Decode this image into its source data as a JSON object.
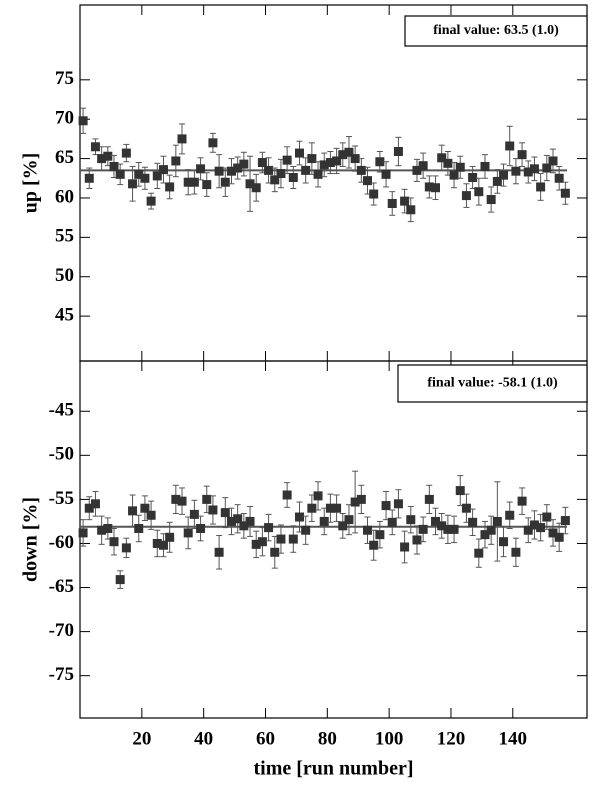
{
  "chart_data": [
    {
      "type": "scatter",
      "ylabel": "up [%]",
      "annotation": "final value: 63.5 (1.0)",
      "fit": 63.5,
      "color": "#333333",
      "ylim": [
        39.3,
        84.5
      ],
      "yticks": [
        45,
        50,
        55,
        60,
        65,
        70,
        75
      ],
      "x": [
        1,
        3,
        5,
        7,
        9,
        11,
        13,
        15,
        17,
        19,
        21,
        23,
        25,
        27,
        29,
        31,
        33,
        35,
        37,
        39,
        41,
        43,
        45,
        47,
        49,
        51,
        53,
        55,
        57,
        59,
        61,
        63,
        65,
        67,
        69,
        71,
        73,
        75,
        77,
        79,
        81,
        83,
        85,
        87,
        89,
        91,
        93,
        95,
        97,
        99,
        101,
        103,
        105,
        107,
        109,
        111,
        113,
        115,
        117,
        119,
        121,
        123,
        125,
        127,
        129,
        131,
        133,
        135,
        137,
        139,
        141,
        143,
        145,
        147,
        149,
        151,
        153,
        155,
        157
      ],
      "values": [
        69.8,
        62.5,
        66.5,
        65,
        65.3,
        64,
        63,
        65.7,
        61.8,
        63,
        62.5,
        59.6,
        62.8,
        63.6,
        61.4,
        64.7,
        67.5,
        62,
        62,
        63.7,
        61.7,
        67,
        63.4,
        62,
        63.4,
        63.8,
        64.3,
        61.8,
        61.3,
        64.5,
        63.5,
        62.3,
        63.1,
        64.8,
        62.6,
        65.7,
        63.5,
        65,
        63,
        64.2,
        64.5,
        64.7,
        65.5,
        65.8,
        65,
        63.5,
        62.2,
        60.5,
        64.6,
        63,
        59.3,
        65.9,
        59.6,
        58.5,
        63.5,
        64.1,
        61.4,
        61.3,
        65.1,
        64.4,
        62.9,
        63.9,
        60.3,
        62.6,
        60.8,
        64,
        59.8,
        62.1,
        62.9,
        66.6,
        63.4,
        65.5,
        63.3,
        63.7,
        61.4,
        63.8,
        64.7,
        62.5,
        60.6
      ],
      "errors": [
        1.6,
        1.3,
        1.0,
        1.5,
        1.2,
        1.4,
        1.3,
        1.1,
        2.2,
        1.5,
        1.4,
        1.0,
        1.6,
        1.7,
        1.5,
        2.0,
        1.9,
        1.6,
        1.5,
        1.4,
        1.5,
        1.2,
        2.1,
        1.8,
        1.6,
        1.4,
        1.5,
        3.5,
        1.7,
        1.3,
        1.6,
        1.5,
        1.8,
        1.7,
        1.4,
        1.5,
        1.6,
        2.0,
        1.6,
        1.5,
        1.4,
        1.6,
        1.5,
        2.0,
        1.6,
        1.5,
        1.7,
        1.4,
        1.3,
        1.6,
        1.5,
        1.8,
        1.5,
        1.5,
        1.4,
        1.6,
        1.4,
        1.5,
        1.6,
        1.5,
        1.6,
        1.4,
        1.5,
        1.4,
        1.7,
        1.5,
        1.6,
        1.5,
        1.4,
        2.5,
        1.6,
        1.5,
        1.4,
        1.5,
        1.7,
        1.6,
        1.5,
        1.5,
        1.4
      ]
    },
    {
      "type": "scatter",
      "ylabel": "down [%]",
      "xlabel": "time [run number]",
      "annotation": "final value: -58.1 (1.0)",
      "fit": -58.1,
      "color": "#333333",
      "xlim": [
        0,
        164
      ],
      "xticks": [
        20,
        40,
        60,
        80,
        100,
        120,
        140
      ],
      "ylim": [
        -79.8,
        -39.3
      ],
      "yticks": [
        -75,
        -70,
        -65,
        -60,
        -55,
        -50,
        -45
      ],
      "x": [
        1,
        3,
        5,
        7,
        9,
        11,
        13,
        15,
        17,
        19,
        21,
        23,
        25,
        27,
        29,
        31,
        33,
        35,
        37,
        39,
        41,
        43,
        45,
        47,
        49,
        51,
        53,
        55,
        57,
        59,
        61,
        63,
        65,
        67,
        69,
        71,
        73,
        75,
        77,
        79,
        81,
        83,
        85,
        87,
        89,
        91,
        93,
        95,
        97,
        99,
        101,
        103,
        105,
        107,
        109,
        111,
        113,
        115,
        117,
        119,
        121,
        123,
        125,
        127,
        129,
        131,
        133,
        135,
        137,
        139,
        141,
        143,
        145,
        147,
        149,
        151,
        153,
        155,
        157
      ],
      "values": [
        -58.8,
        -56,
        -55.5,
        -58.5,
        -58.3,
        -59.8,
        -64.1,
        -60.5,
        -56.3,
        -58.3,
        -56,
        -56.8,
        -60,
        -60.2,
        -59.3,
        -55,
        -55.2,
        -58.8,
        -56.7,
        -58.3,
        -55,
        -56.2,
        -61,
        -56.5,
        -57.5,
        -57.2,
        -58,
        -57.5,
        -60.1,
        -59.8,
        -58.2,
        -61,
        -59.5,
        -54.5,
        -59.5,
        -57,
        -58.5,
        -56,
        -54.6,
        -57.5,
        -56,
        -56,
        -58,
        -57.3,
        -55.3,
        -55,
        -58.5,
        -60.2,
        -59,
        -55.7,
        -57.6,
        -55.5,
        -60.4,
        -57.3,
        -59.6,
        -58.4,
        -55,
        -57.5,
        -58,
        -58.4,
        -58.4,
        -54,
        -56,
        -57.6,
        -61.1,
        -59,
        -58.5,
        -57.5,
        -59.8,
        -56.8,
        -61,
        -55.2,
        -58.5,
        -57.9,
        -58.2,
        -57,
        -58.8,
        -59.3,
        -57.4
      ],
      "errors": [
        1.5,
        1.3,
        1.4,
        1.6,
        1.2,
        1.5,
        1.0,
        1.1,
        1.8,
        1.5,
        1.4,
        1.6,
        1.5,
        1.3,
        1.7,
        1.6,
        1.5,
        1.8,
        1.6,
        1.4,
        1.5,
        1.6,
        1.9,
        1.7,
        1.5,
        1.6,
        1.4,
        1.7,
        1.5,
        1.6,
        1.5,
        1.8,
        1.6,
        1.4,
        1.5,
        1.7,
        1.6,
        1.5,
        1.6,
        1.5,
        1.6,
        1.5,
        1.4,
        1.7,
        3.5,
        1.6,
        1.5,
        1.7,
        1.5,
        1.6,
        1.4,
        1.6,
        1.8,
        1.5,
        1.6,
        1.4,
        1.6,
        1.5,
        1.4,
        1.6,
        1.5,
        1.7,
        1.6,
        1.5,
        1.6,
        1.5,
        1.6,
        4.5,
        1.7,
        1.5,
        1.6,
        1.5,
        1.4,
        1.6,
        1.5,
        1.4,
        1.5,
        1.6,
        1.5
      ]
    }
  ]
}
